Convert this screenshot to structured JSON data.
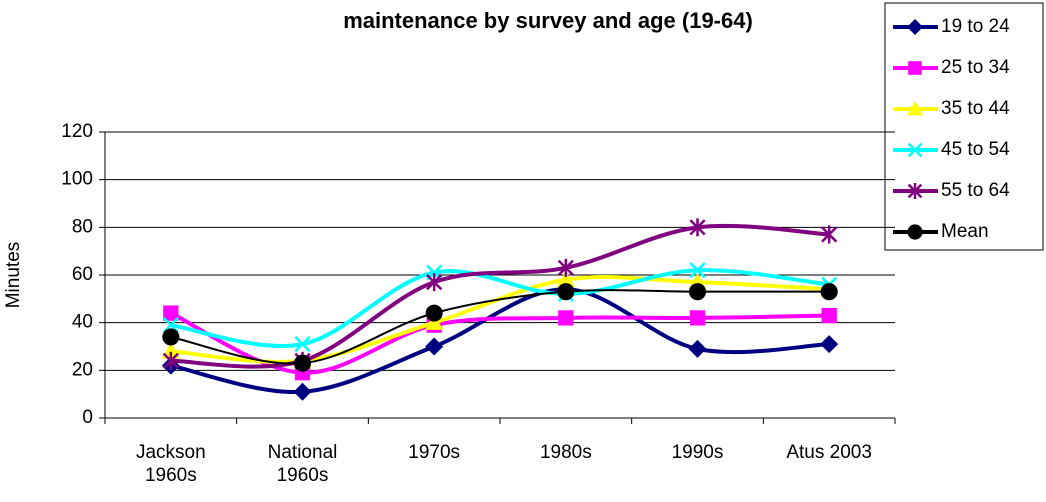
{
  "chart_data": {
    "type": "line",
    "title": "maintenance by survey and age (19-64)",
    "y_label": "Minutes",
    "categories": [
      "Jackson 1960s",
      "National 1960s",
      "1970s",
      "1980s",
      "1990s",
      "Atus 2003"
    ],
    "ylim": [
      0,
      120
    ],
    "yticks": [
      0,
      20,
      40,
      60,
      80,
      100,
      120
    ],
    "grid": true,
    "series": [
      {
        "name": "19 to 24",
        "color": "#000080",
        "marker": "diamond",
        "values": [
          22,
          11,
          30,
          54,
          29,
          31
        ]
      },
      {
        "name": "25 to 34",
        "color": "#ff00ff",
        "marker": "square",
        "values": [
          44,
          19,
          39,
          42,
          42,
          43
        ]
      },
      {
        "name": "35 to 44",
        "color": "#ffff00",
        "marker": "triangle",
        "values": [
          28,
          24,
          40,
          58,
          57,
          54
        ]
      },
      {
        "name": "45 to 54",
        "color": "#00ffff",
        "marker": "x",
        "values": [
          39,
          31,
          61,
          52,
          62,
          56
        ]
      },
      {
        "name": "55 to 64",
        "color": "#800080",
        "marker": "asterisk",
        "values": [
          24,
          24,
          57,
          63,
          80,
          77
        ]
      },
      {
        "name": "Mean",
        "color": "#000000",
        "marker": "circle",
        "values": [
          34,
          23,
          44,
          53,
          53,
          53
        ]
      }
    ]
  }
}
